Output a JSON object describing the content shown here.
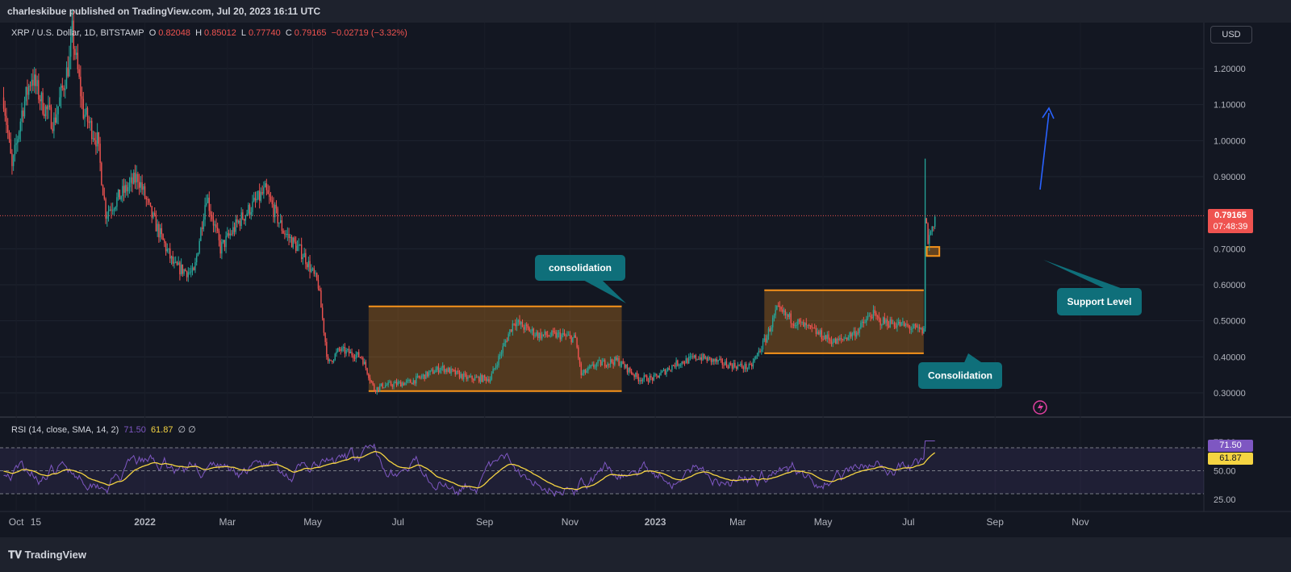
{
  "header": {
    "publisher": "charleskibue published on TradingView.com, Jul 20, 2023 16:11 UTC"
  },
  "legend": {
    "symbol": "XRP / U.S. Dollar, 1D, BITSTAMP",
    "o_label": "O",
    "o": "0.82048",
    "h_label": "H",
    "h": "0.85012",
    "l_label": "L",
    "l": "0.77740",
    "c_label": "C",
    "c": "0.79165",
    "change": "−0.02719 (−3.32%)"
  },
  "rsi_legend": {
    "label": "RSI (14, close, SMA, 14, 2)",
    "rsi": "71.50",
    "sma": "61.87",
    "extra": "∅ ∅"
  },
  "currency_button": "USD",
  "price_tag": {
    "price": "0.79165",
    "countdown": "07:48:39"
  },
  "rsi_tags": {
    "rsi": "71.50",
    "sma": "61.87"
  },
  "footer": {
    "logo": "TradingView"
  },
  "colors": {
    "bg": "#131722",
    "up": "#26a69a",
    "down": "#ef5350",
    "rsi": "#7e57c2",
    "sma": "#f5d442",
    "zone": "#f7931a",
    "callout": "#0f6f7a",
    "arrow": "#2962ff"
  },
  "chart_data": {
    "type": "candlestick",
    "symbol": "XRP / U.S. Dollar, 1D, BITSTAMP",
    "y_ticks": [
      1.2,
      1.1,
      1.0,
      0.9,
      0.7,
      0.6,
      0.5,
      0.4,
      0.3
    ],
    "y_tick_labels": [
      "1.20000",
      "1.10000",
      "1.00000",
      "0.90000",
      "0.70000",
      "0.60000",
      "0.50000",
      "0.40000",
      "0.30000"
    ],
    "x_tick_labels": [
      "Oct",
      "15",
      "2022",
      "Mar",
      "May",
      "Jul",
      "Sep",
      "Nov",
      "2023",
      "Mar",
      "May",
      "Jul",
      "Sep",
      "Nov"
    ],
    "last_price": 0.79165,
    "price_path": [
      {
        "d": "2021-09-22",
        "p": 1.12
      },
      {
        "d": "2021-09-28",
        "p": 0.92
      },
      {
        "d": "2021-10-05",
        "p": 1.08
      },
      {
        "d": "2021-10-12",
        "p": 1.18
      },
      {
        "d": "2021-10-20",
        "p": 1.1
      },
      {
        "d": "2021-10-28",
        "p": 1.05
      },
      {
        "d": "2021-11-08",
        "p": 1.22
      },
      {
        "d": "2021-11-10",
        "p": 1.3
      },
      {
        "d": "2021-11-18",
        "p": 1.08
      },
      {
        "d": "2021-11-28",
        "p": 1.0
      },
      {
        "d": "2021-12-04",
        "p": 0.8
      },
      {
        "d": "2021-12-15",
        "p": 0.85
      },
      {
        "d": "2021-12-27",
        "p": 0.9
      },
      {
        "d": "2022-01-05",
        "p": 0.8
      },
      {
        "d": "2022-01-22",
        "p": 0.65
      },
      {
        "d": "2022-02-05",
        "p": 0.63
      },
      {
        "d": "2022-02-14",
        "p": 0.85
      },
      {
        "d": "2022-02-24",
        "p": 0.7
      },
      {
        "d": "2022-03-10",
        "p": 0.78
      },
      {
        "d": "2022-03-28",
        "p": 0.86
      },
      {
        "d": "2022-04-10",
        "p": 0.75
      },
      {
        "d": "2022-04-25",
        "p": 0.68
      },
      {
        "d": "2022-05-05",
        "p": 0.6
      },
      {
        "d": "2022-05-12",
        "p": 0.38
      },
      {
        "d": "2022-05-20",
        "p": 0.42
      },
      {
        "d": "2022-06-05",
        "p": 0.4
      },
      {
        "d": "2022-06-14",
        "p": 0.31
      },
      {
        "d": "2022-06-20",
        "p": 0.32
      },
      {
        "d": "2022-07-10",
        "p": 0.33
      },
      {
        "d": "2022-08-01",
        "p": 0.37
      },
      {
        "d": "2022-08-20",
        "p": 0.34
      },
      {
        "d": "2022-09-05",
        "p": 0.34
      },
      {
        "d": "2022-09-22",
        "p": 0.5
      },
      {
        "d": "2022-09-30",
        "p": 0.48
      },
      {
        "d": "2022-10-10",
        "p": 0.46
      },
      {
        "d": "2022-10-25",
        "p": 0.46
      },
      {
        "d": "2022-11-05",
        "p": 0.45
      },
      {
        "d": "2022-11-09",
        "p": 0.35
      },
      {
        "d": "2022-11-20",
        "p": 0.38
      },
      {
        "d": "2022-12-05",
        "p": 0.39
      },
      {
        "d": "2022-12-20",
        "p": 0.34
      },
      {
        "d": "2022-12-31",
        "p": 0.34
      },
      {
        "d": "2023-01-15",
        "p": 0.38
      },
      {
        "d": "2023-02-01",
        "p": 0.4
      },
      {
        "d": "2023-02-20",
        "p": 0.38
      },
      {
        "d": "2023-03-10",
        "p": 0.37
      },
      {
        "d": "2023-03-21",
        "p": 0.45
      },
      {
        "d": "2023-03-29",
        "p": 0.53
      },
      {
        "d": "2023-04-10",
        "p": 0.5
      },
      {
        "d": "2023-04-25",
        "p": 0.47
      },
      {
        "d": "2023-05-10",
        "p": 0.44
      },
      {
        "d": "2023-05-25",
        "p": 0.47
      },
      {
        "d": "2023-06-05",
        "p": 0.52
      },
      {
        "d": "2023-06-10",
        "p": 0.5
      },
      {
        "d": "2023-06-25",
        "p": 0.49
      },
      {
        "d": "2023-07-12",
        "p": 0.47
      },
      {
        "d": "2023-07-13",
        "p": 0.8
      },
      {
        "d": "2023-07-15",
        "p": 0.72
      },
      {
        "d": "2023-07-20",
        "p": 0.79
      }
    ],
    "rsi": {
      "label": "RSI (14, close, SMA, 14, 2)",
      "last": 71.5,
      "sma_last": 61.87,
      "levels": [
        70,
        50,
        30
      ],
      "ticks": [
        75,
        50,
        25
      ]
    },
    "annotations": [
      {
        "text": "consolidation",
        "range": [
          "2022-06-10",
          "2022-12-08"
        ],
        "top": 0.54,
        "bottom": 0.305
      },
      {
        "text": "Consolidation",
        "range": [
          "2023-03-20",
          "2023-07-12"
        ],
        "top": 0.585,
        "bottom": 0.41
      },
      {
        "text": "Support Level",
        "range": [
          "2023-07-13",
          "2023-07-22"
        ],
        "top": 0.705,
        "bottom": 0.68
      }
    ]
  }
}
